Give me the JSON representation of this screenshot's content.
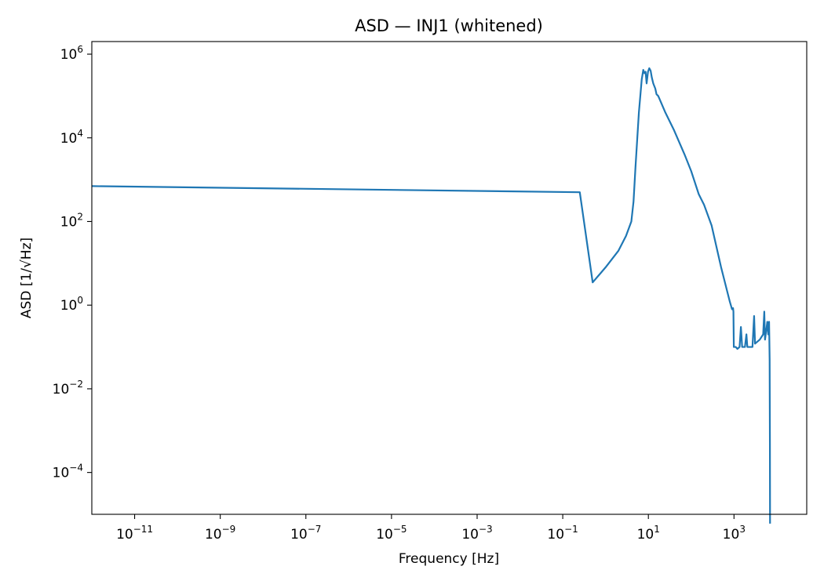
{
  "chart_data": {
    "type": "line",
    "title": "ASD — INJ1 (whitened)",
    "xlabel": "Frequency [Hz]",
    "ylabel": "ASD [1/√Hz]",
    "xscale": "log",
    "yscale": "log",
    "xlim": [
      1e-12,
      50000
    ],
    "ylim": [
      1e-05,
      2000000.0
    ],
    "grid": false,
    "legend": "none",
    "x_ticks": [
      {
        "base": "10",
        "exp": "−11",
        "value": 1e-11
      },
      {
        "base": "10",
        "exp": "−9",
        "value": 1e-09
      },
      {
        "base": "10",
        "exp": "−7",
        "value": 1e-07
      },
      {
        "base": "10",
        "exp": "−5",
        "value": 1e-05
      },
      {
        "base": "10",
        "exp": "−3",
        "value": 0.001
      },
      {
        "base": "10",
        "exp": "−1",
        "value": 0.1
      },
      {
        "base": "10",
        "exp": "1",
        "value": 10
      },
      {
        "base": "10",
        "exp": "3",
        "value": 1000
      }
    ],
    "y_ticks": [
      {
        "base": "10",
        "exp": "−4",
        "value": 0.0001
      },
      {
        "base": "10",
        "exp": "−2",
        "value": 0.01
      },
      {
        "base": "10",
        "exp": "0",
        "value": 1
      },
      {
        "base": "10",
        "exp": "2",
        "value": 100
      },
      {
        "base": "10",
        "exp": "4",
        "value": 10000
      },
      {
        "base": "10",
        "exp": "6",
        "value": 1000000
      }
    ],
    "series": [
      {
        "color": "#1f77b4",
        "points": [
          [
            1e-12,
            700
          ],
          [
            0.25,
            500
          ],
          [
            0.5,
            3.5
          ],
          [
            1,
            8
          ],
          [
            2,
            20
          ],
          [
            3,
            45
          ],
          [
            4,
            100
          ],
          [
            4.5,
            300
          ],
          [
            5,
            2000
          ],
          [
            6,
            40000
          ],
          [
            7,
            250000
          ],
          [
            7.6,
            420000
          ],
          [
            8.1,
            350000
          ],
          [
            8.6,
            380000
          ],
          [
            9.1,
            200000
          ],
          [
            9.8,
            380000
          ],
          [
            10.5,
            460000
          ],
          [
            11.3,
            400000
          ],
          [
            12,
            280000
          ],
          [
            13,
            200000
          ],
          [
            14.5,
            150000
          ],
          [
            15.5,
            110000
          ],
          [
            17,
            100000
          ],
          [
            25,
            40000
          ],
          [
            40,
            15000
          ],
          [
            70,
            4000
          ],
          [
            100,
            1600
          ],
          [
            150,
            450
          ],
          [
            200,
            250
          ],
          [
            300,
            80
          ],
          [
            500,
            8
          ],
          [
            800,
            1.2
          ],
          [
            900,
            0.8
          ],
          [
            950,
            0.85
          ],
          [
            970,
            0.7
          ],
          [
            990,
            0.1
          ],
          [
            1100,
            0.1
          ],
          [
            1200,
            0.09
          ],
          [
            1350,
            0.1
          ],
          [
            1450,
            0.3
          ],
          [
            1550,
            0.1
          ],
          [
            1800,
            0.1
          ],
          [
            1950,
            0.2
          ],
          [
            2050,
            0.1
          ],
          [
            2700,
            0.1
          ],
          [
            2950,
            0.55
          ],
          [
            3100,
            0.12
          ],
          [
            4000,
            0.15
          ],
          [
            4800,
            0.2
          ],
          [
            5100,
            0.7
          ],
          [
            5300,
            0.15
          ],
          [
            5800,
            0.3
          ],
          [
            6000,
            0.4
          ],
          [
            6300,
            0.2
          ],
          [
            6600,
            0.4
          ],
          [
            6800,
            0.05
          ],
          [
            6900,
            0.0005
          ],
          [
            6950,
            6e-06
          ]
        ]
      }
    ]
  }
}
